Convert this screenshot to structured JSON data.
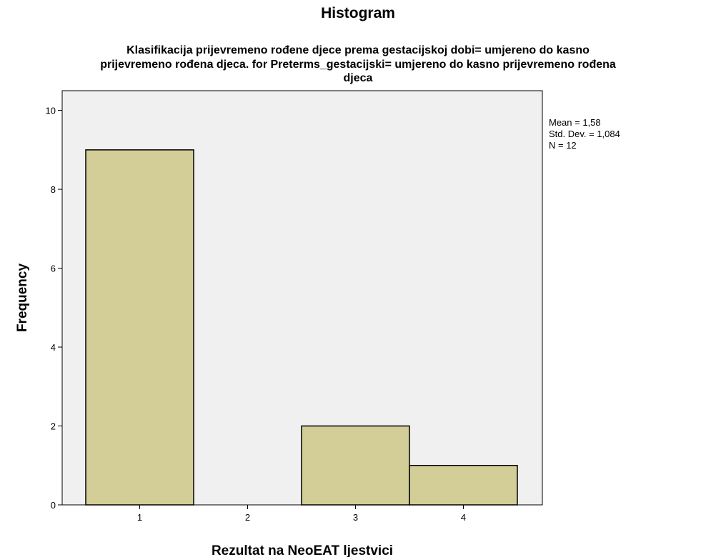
{
  "chart_data": {
    "type": "bar",
    "title": "Histogram",
    "subtitle_lines": [
      "Klasifikacija prijevremeno rođene djece prema gestacijskoj dobi= umjereno do kasno",
      "prijevremeno rođena djeca. for Preterms_gestacijski= umjereno do kasno prijevremeno rođena",
      "djeca"
    ],
    "xlabel": "Rezultat na NeoEAT ljestvici",
    "ylabel": "Frequency",
    "categories": [
      "1",
      "2",
      "3",
      "4"
    ],
    "values": [
      9,
      0,
      2,
      1
    ],
    "x_ticks": [
      "1",
      "2",
      "3",
      "4"
    ],
    "y_ticks": [
      "0",
      "2",
      "4",
      "6",
      "8",
      "10"
    ],
    "ylim": [
      0,
      10.5
    ],
    "grid": false,
    "stats": {
      "mean": "Mean = 1,58",
      "std_dev": "Std. Dev. = 1,084",
      "n": "N = 12"
    },
    "colors": {
      "bar_fill": "#D3CE97",
      "bar_stroke": "#000000",
      "plot_background": "#F0F0F0"
    }
  }
}
